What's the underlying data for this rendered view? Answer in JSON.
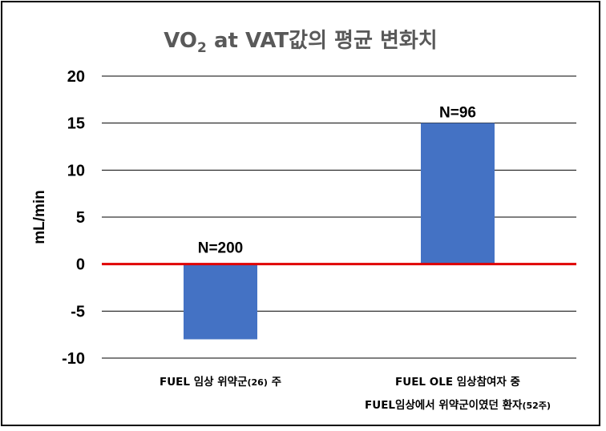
{
  "chart_data": {
    "type": "bar",
    "title_main": "VO",
    "title_sub": "2",
    "title_rest": " at VAT값의 평균 변화치",
    "ylabel": "mL/min",
    "ylim": [
      -10,
      20
    ],
    "yticks": [
      20,
      15,
      10,
      5,
      0,
      -5,
      -10
    ],
    "grid": true,
    "categories": [
      {
        "lines": [
          [
            {
              "text": "FUEL 임상 위약군",
              "small": false
            },
            {
              "text": "(26)",
              "small": true
            },
            {
              "text": " 주",
              "small": false
            }
          ]
        ]
      },
      {
        "lines": [
          [
            {
              "text": "FUEL OLE 임상참여자 중",
              "small": false
            }
          ],
          [
            {
              "text": "FUEL임상에서 위약군이였던 환자",
              "small": false
            },
            {
              "text": "(52주)",
              "small": true
            }
          ]
        ]
      }
    ],
    "values": [
      -8,
      15
    ],
    "data_labels": [
      "N=200",
      "N=96"
    ],
    "colors": {
      "bar": "#4472C4",
      "zero_line": "#E00000",
      "grid": "#000000",
      "title": "#595959"
    }
  }
}
